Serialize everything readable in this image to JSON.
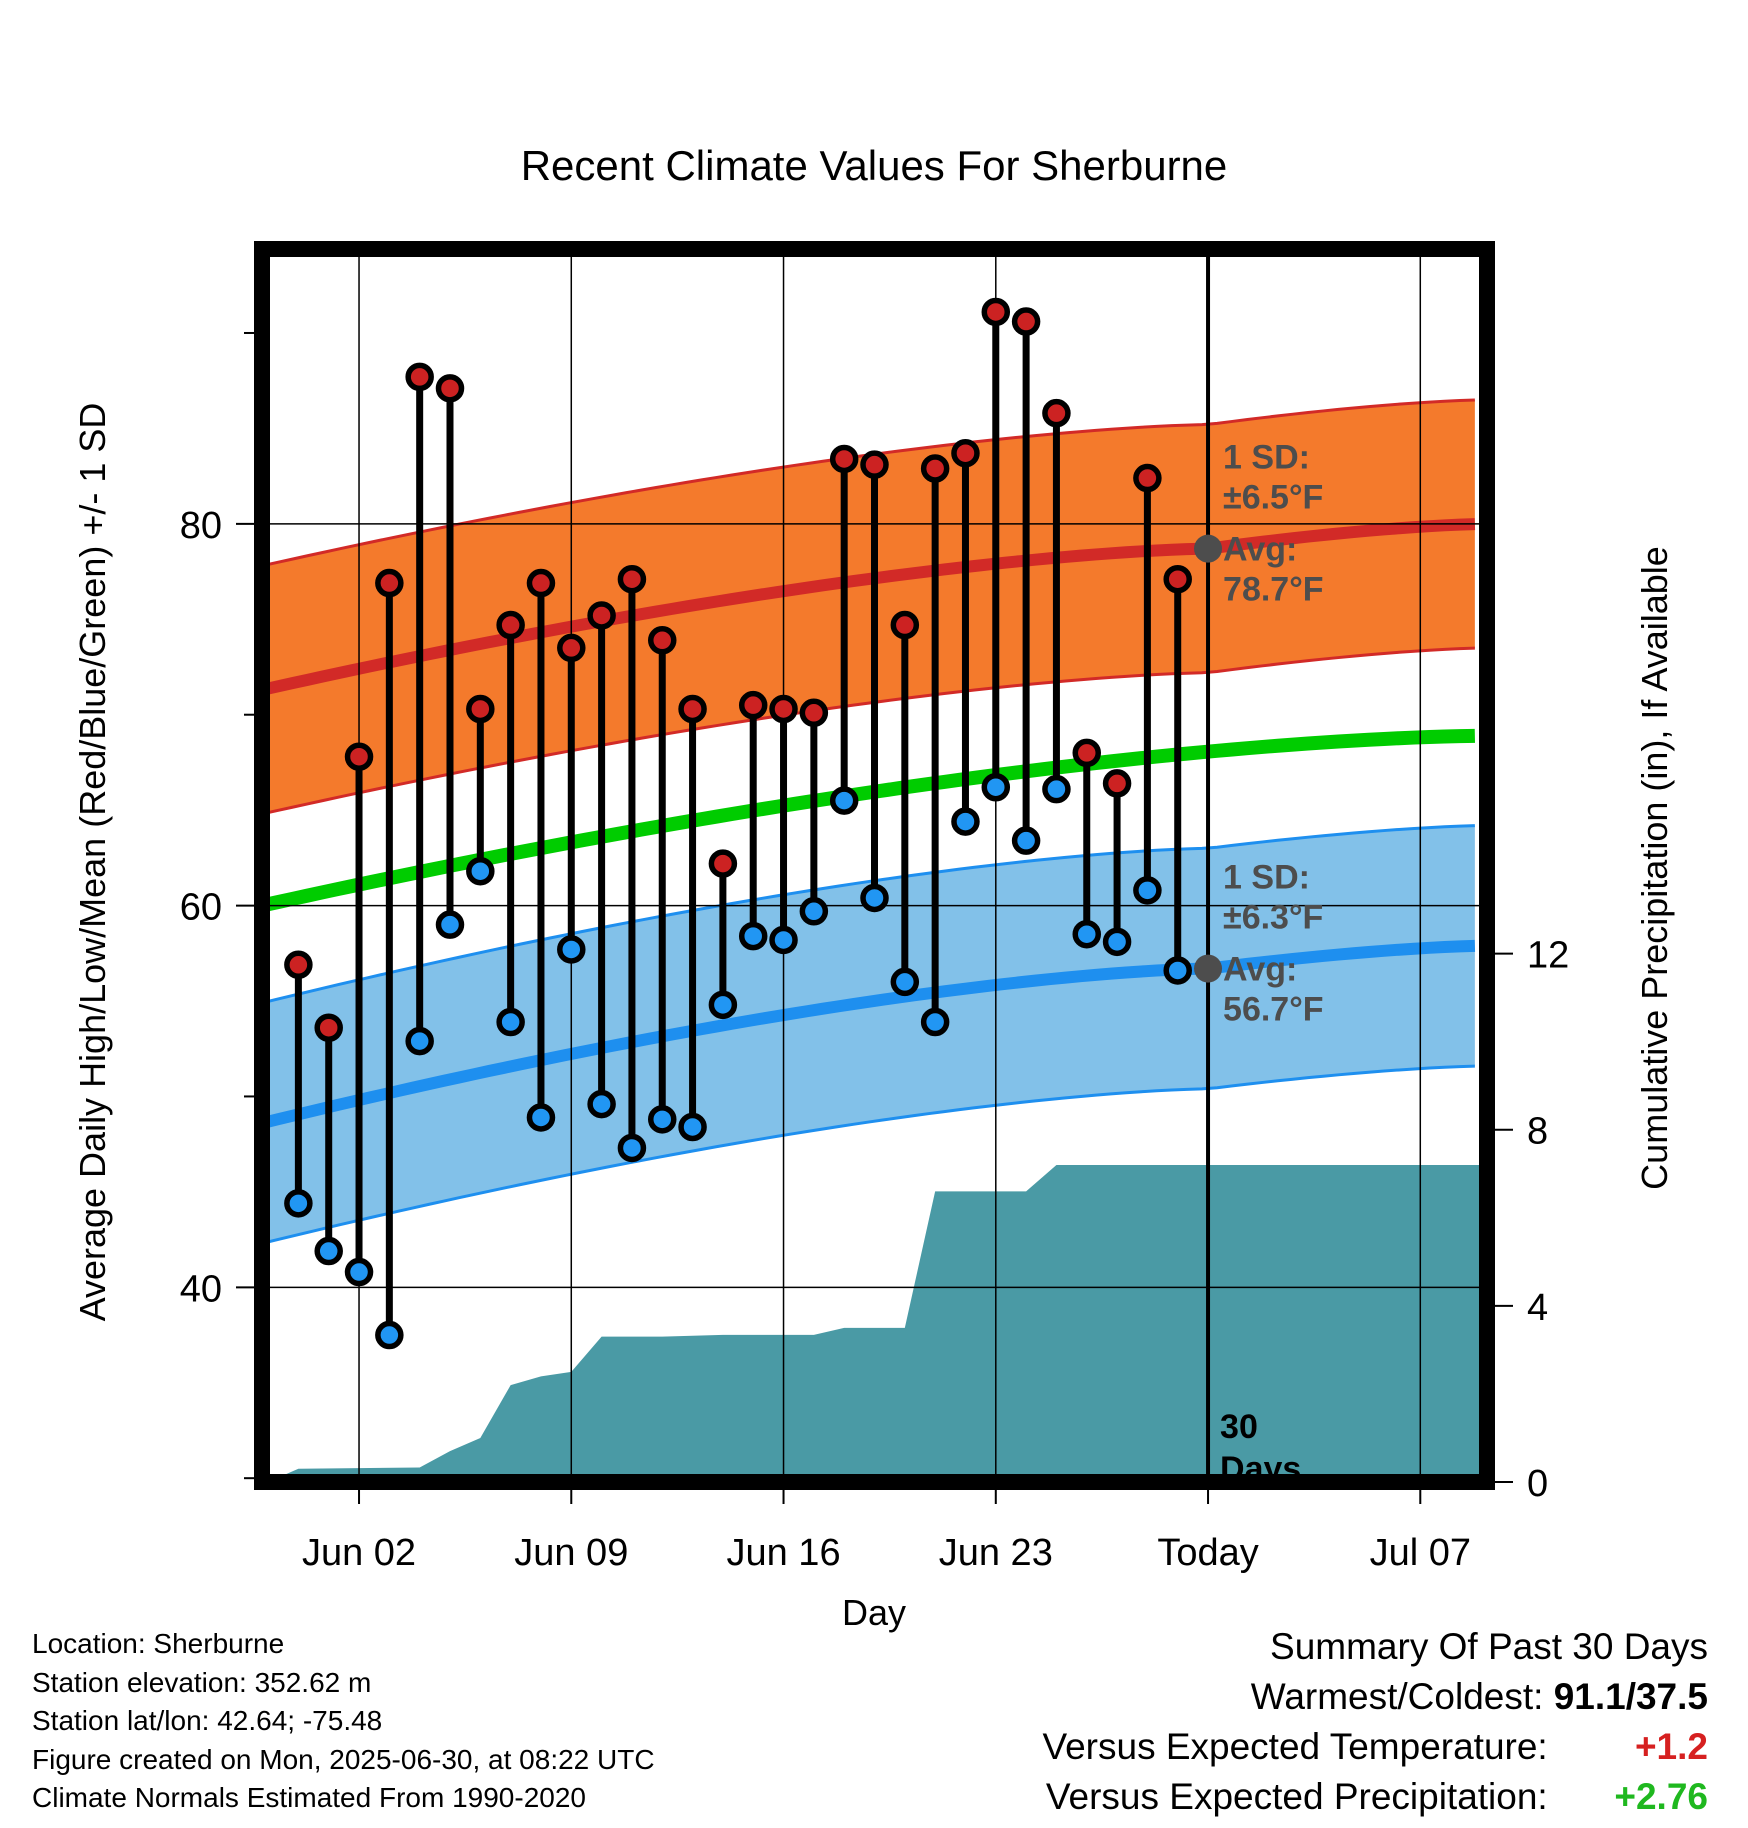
{
  "chart_data": {
    "type": "line",
    "title": "Recent Climate Values For Sherburne",
    "xlabel": "Day",
    "ylabel_left": "Average Daily High/Low/Mean (Red/Blue/Green) +/- 1 SD",
    "ylabel_right": "Cumulative Precipitation (in), If Available",
    "x_ticks": [
      {
        "day": 3,
        "label": "Jun 02"
      },
      {
        "day": 10,
        "label": "Jun 09"
      },
      {
        "day": 17,
        "label": "Jun 16"
      },
      {
        "day": 24,
        "label": "Jun 23"
      },
      {
        "day": 31,
        "label": "Today"
      },
      {
        "day": 38,
        "label": "Jul 07"
      }
    ],
    "y_left_ticks": [
      "40",
      "60",
      "80"
    ],
    "y_left_tick_values": [
      40,
      60,
      80
    ],
    "y_right_ticks": [
      "0",
      "4",
      "8",
      "12"
    ],
    "y_right_tick_values": [
      0,
      4,
      8,
      12
    ],
    "xlim": [
      -0.2,
      40.2
    ],
    "ylim_left": [
      29.8,
      94.4
    ],
    "ylim_right": [
      0,
      28
    ],
    "grid": true,
    "days": [
      1,
      2,
      3,
      4,
      5,
      6,
      7,
      8,
      9,
      10,
      11,
      12,
      13,
      14,
      15,
      16,
      17,
      18,
      19,
      20,
      21,
      22,
      23,
      24,
      25,
      26,
      27,
      28,
      29,
      30
    ],
    "daily_high": [
      56.9,
      53.6,
      67.8,
      76.9,
      87.7,
      87.1,
      70.3,
      74.7,
      76.9,
      73.5,
      75.2,
      77.1,
      73.9,
      70.3,
      62.2,
      70.5,
      70.3,
      70.1,
      83.4,
      83.1,
      74.7,
      82.9,
      83.7,
      91.1,
      90.6,
      85.8,
      68.0,
      66.4,
      82.4,
      77.1
    ],
    "daily_low": [
      44.4,
      41.9,
      40.8,
      37.5,
      52.9,
      59.0,
      61.8,
      53.9,
      48.9,
      57.7,
      49.6,
      47.3,
      48.8,
      48.4,
      54.8,
      58.4,
      58.2,
      59.7,
      65.5,
      60.4,
      56.0,
      53.9,
      64.4,
      66.2,
      63.4,
      66.1,
      58.5,
      58.1,
      60.8,
      56.6
    ],
    "normal_high": {
      "start": 71.3,
      "today": 78.7,
      "end": 80.0,
      "sd": 6.5
    },
    "normal_low": {
      "start": 48.6,
      "today": 56.7,
      "end": 57.9,
      "sd": 6.3
    },
    "normal_mean": {
      "start": 60.0,
      "end": 68.9
    },
    "precip_cumulative": [
      [
        0,
        0.0
      ],
      [
        1,
        0.3
      ],
      [
        5,
        0.33
      ],
      [
        6,
        0.7
      ],
      [
        7,
        1.0
      ],
      [
        8,
        2.2
      ],
      [
        9,
        2.4
      ],
      [
        10,
        2.5
      ],
      [
        11,
        3.3
      ],
      [
        13,
        3.3
      ],
      [
        15,
        3.34
      ],
      [
        18,
        3.34
      ],
      [
        19,
        3.5
      ],
      [
        21,
        3.5
      ],
      [
        22,
        6.6
      ],
      [
        25,
        6.6
      ],
      [
        26,
        7.2
      ],
      [
        40,
        7.2
      ]
    ],
    "today_day": 31,
    "high_band_label": [
      "1 SD:",
      "±6.5°F",
      "Avg:",
      "78.7°F"
    ],
    "low_band_label": [
      "1 SD:",
      "±6.3°F",
      "Avg:",
      "56.7°F"
    ],
    "days_label": [
      "30",
      "Days"
    ],
    "colors": {
      "high_band": "#f47a2c",
      "high_line": "#d22a27",
      "low_band": "#82c1e9",
      "low_line": "#1e8fef",
      "mean_line": "#00cc00",
      "precip": "#4a9aa5",
      "high_dot": "#cc2222",
      "low_dot": "#2196f3",
      "today_dot": "#4d4d4d"
    }
  },
  "footer": {
    "location": "Location: Sherburne",
    "elevation": "Station elevation: 352.62 m",
    "latlon": "Station lat/lon: 42.64; -75.48",
    "created": "Figure created on Mon, 2025-06-30, at 08:22 UTC",
    "normals": "Climate Normals Estimated From 1990-2020"
  },
  "summary": {
    "title": "Summary Of Past 30 Days",
    "warm_cold_label": "Warmest/Coldest:",
    "warm_cold_value": "91.1/37.5",
    "temp_label": "Versus Expected Temperature:",
    "temp_value": "+1.2",
    "precip_label": "Versus Expected Precipitation:",
    "precip_value": "+2.76"
  }
}
